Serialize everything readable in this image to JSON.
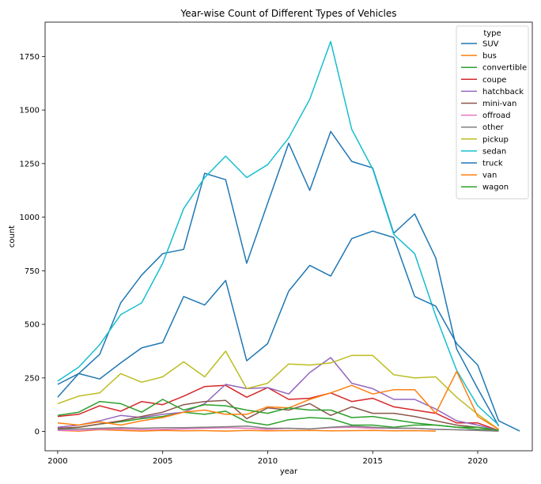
{
  "chart_data": {
    "type": "line",
    "title": "Year-wise Count of Different Types of Vehicles",
    "xlabel": "year",
    "ylabel": "count",
    "xlim": [
      1999.4,
      2022.6
    ],
    "ylim": [
      -90,
      1910
    ],
    "x_ticks": [
      2000,
      2005,
      2010,
      2015,
      2020
    ],
    "y_ticks": [
      0,
      250,
      500,
      750,
      1000,
      1250,
      1500,
      1750
    ],
    "grid": false,
    "legend_title": "type",
    "legend_position": "upper right",
    "series": [
      {
        "name": "SUV",
        "color": "#1f77b4",
        "x": [
          2000,
          2001,
          2002,
          2003,
          2004,
          2005,
          2006,
          2007,
          2008,
          2009,
          2010,
          2011,
          2012,
          2013,
          2014,
          2015,
          2016,
          2017,
          2018,
          2019,
          2020,
          2021
        ],
        "y": [
          220,
          270,
          360,
          600,
          730,
          830,
          850,
          1205,
          1175,
          785,
          1065,
          1345,
          1125,
          1400,
          1260,
          1230,
          925,
          1015,
          810,
          385,
          200,
          25
        ]
      },
      {
        "name": "bus",
        "color": "#ff7f0e",
        "x": [
          2000,
          2001,
          2002,
          2003,
          2004,
          2005,
          2006,
          2007,
          2008,
          2009,
          2010,
          2011,
          2012,
          2013,
          2014,
          2015,
          2016,
          2017,
          2018
        ],
        "y": [
          5,
          2,
          8,
          5,
          2,
          5,
          3,
          4,
          2,
          5,
          3,
          4,
          5,
          3,
          4,
          5,
          3,
          4,
          2
        ]
      },
      {
        "name": "convertible",
        "color": "#2ca02c",
        "x": [
          2000,
          2001,
          2002,
          2003,
          2004,
          2005,
          2006,
          2007,
          2008,
          2009,
          2010,
          2011,
          2012,
          2013,
          2014,
          2015,
          2016,
          2017,
          2018,
          2019,
          2020,
          2021
        ],
        "y": [
          10,
          20,
          35,
          45,
          60,
          70,
          90,
          80,
          95,
          45,
          30,
          55,
          65,
          60,
          30,
          30,
          20,
          30,
          30,
          20,
          10,
          5
        ]
      },
      {
        "name": "coupe",
        "color": "#d62728",
        "x": [
          2000,
          2001,
          2002,
          2003,
          2004,
          2005,
          2006,
          2007,
          2008,
          2009,
          2010,
          2011,
          2012,
          2013,
          2014,
          2015,
          2016,
          2017,
          2018,
          2019,
          2020,
          2021
        ],
        "y": [
          70,
          80,
          120,
          95,
          140,
          125,
          165,
          210,
          215,
          160,
          205,
          150,
          155,
          180,
          140,
          155,
          115,
          100,
          85,
          40,
          40,
          5
        ]
      },
      {
        "name": "hatchback",
        "color": "#9467bd",
        "x": [
          2000,
          2001,
          2002,
          2003,
          2004,
          2005,
          2006,
          2007,
          2008,
          2009,
          2010,
          2011,
          2012,
          2013,
          2014,
          2015,
          2016,
          2017,
          2018,
          2019,
          2020,
          2021
        ],
        "y": [
          20,
          30,
          50,
          75,
          65,
          80,
          90,
          130,
          220,
          200,
          205,
          175,
          275,
          345,
          225,
          200,
          150,
          150,
          105,
          50,
          30,
          5
        ]
      },
      {
        "name": "mini-van",
        "color": "#8c564b",
        "x": [
          2000,
          2001,
          2002,
          2003,
          2004,
          2005,
          2006,
          2007,
          2008,
          2009,
          2010,
          2011,
          2012,
          2013,
          2014,
          2015,
          2016,
          2017,
          2018,
          2019,
          2020,
          2021
        ],
        "y": [
          15,
          20,
          35,
          50,
          70,
          90,
          125,
          140,
          145,
          60,
          110,
          100,
          130,
          75,
          115,
          85,
          85,
          70,
          50,
          30,
          20,
          3
        ]
      },
      {
        "name": "offroad",
        "color": "#e377c2",
        "x": [
          2000,
          2001,
          2002,
          2003,
          2004,
          2005,
          2006,
          2007,
          2008,
          2009,
          2010,
          2011,
          2012,
          2013,
          2014,
          2015,
          2016,
          2017,
          2018,
          2019,
          2020,
          2021
        ],
        "y": [
          5,
          5,
          10,
          12,
          8,
          10,
          12,
          15,
          18,
          15,
          10,
          15,
          12,
          18,
          20,
          15,
          15,
          15,
          10,
          8,
          5,
          2
        ]
      },
      {
        "name": "other",
        "color": "#7f7f7f",
        "x": [
          2000,
          2001,
          2002,
          2003,
          2004,
          2005,
          2006,
          2007,
          2008,
          2009,
          2010,
          2011,
          2012,
          2013,
          2014,
          2015,
          2016,
          2017,
          2018,
          2019,
          2020,
          2021
        ],
        "y": [
          10,
          12,
          15,
          18,
          15,
          18,
          18,
          20,
          22,
          25,
          15,
          15,
          12,
          20,
          25,
          20,
          15,
          15,
          10,
          8,
          5,
          2
        ]
      },
      {
        "name": "pickup",
        "color": "#bcbd22",
        "x": [
          2000,
          2001,
          2002,
          2003,
          2004,
          2005,
          2006,
          2007,
          2008,
          2009,
          2010,
          2011,
          2012,
          2013,
          2014,
          2015,
          2016,
          2017,
          2018,
          2019,
          2020,
          2021
        ],
        "y": [
          130,
          165,
          180,
          270,
          230,
          255,
          325,
          255,
          375,
          200,
          225,
          315,
          310,
          320,
          355,
          355,
          265,
          250,
          255,
          160,
          80,
          10
        ]
      },
      {
        "name": "sedan",
        "color": "#17becf",
        "x": [
          2000,
          2001,
          2002,
          2003,
          2004,
          2005,
          2006,
          2007,
          2008,
          2009,
          2010,
          2011,
          2012,
          2013,
          2014,
          2015,
          2016,
          2017,
          2018,
          2019,
          2020,
          2021
        ],
        "y": [
          235,
          300,
          405,
          545,
          600,
          785,
          1040,
          1185,
          1285,
          1185,
          1245,
          1370,
          1550,
          1820,
          1410,
          1225,
          920,
          830,
          540,
          285,
          120,
          30
        ]
      },
      {
        "name": "truck",
        "color": "#1f77b4",
        "x": [
          2000,
          2001,
          2002,
          2003,
          2004,
          2005,
          2006,
          2007,
          2008,
          2009,
          2010,
          2011,
          2012,
          2013,
          2014,
          2015,
          2016,
          2017,
          2018,
          2019,
          2020,
          2021,
          2022
        ],
        "y": [
          160,
          270,
          245,
          320,
          390,
          415,
          630,
          590,
          705,
          330,
          410,
          655,
          775,
          725,
          900,
          935,
          905,
          630,
          585,
          410,
          310,
          50,
          2
        ]
      },
      {
        "name": "van",
        "color": "#ff7f0e",
        "x": [
          2000,
          2001,
          2002,
          2003,
          2004,
          2005,
          2006,
          2007,
          2008,
          2009,
          2010,
          2011,
          2012,
          2013,
          2014,
          2015,
          2016,
          2017,
          2018,
          2019,
          2020,
          2021
        ],
        "y": [
          40,
          30,
          45,
          30,
          50,
          65,
          90,
          100,
          80,
          80,
          115,
          110,
          150,
          180,
          215,
          175,
          195,
          195,
          85,
          280,
          70,
          10
        ]
      },
      {
        "name": "wagon",
        "color": "#2ca02c",
        "x": [
          2000,
          2001,
          2002,
          2003,
          2004,
          2005,
          2006,
          2007,
          2008,
          2009,
          2010,
          2011,
          2012,
          2013,
          2014,
          2015,
          2016,
          2017,
          2018,
          2019,
          2020,
          2021
        ],
        "y": [
          75,
          90,
          140,
          130,
          90,
          150,
          100,
          125,
          120,
          100,
          85,
          110,
          100,
          100,
          65,
          70,
          55,
          40,
          30,
          20,
          20,
          5
        ]
      }
    ]
  }
}
